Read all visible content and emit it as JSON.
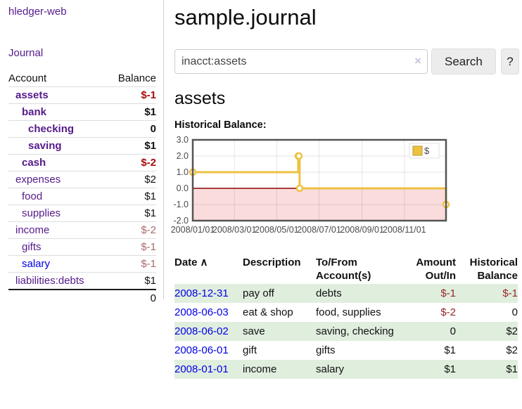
{
  "app": {
    "title": "hledger-web",
    "nav_journal": "Journal"
  },
  "sidebar": {
    "header": {
      "account": "Account",
      "balance": "Balance"
    },
    "accounts": [
      {
        "label": "assets",
        "balance": "$-1",
        "indent": 0,
        "bold": true,
        "negative": true
      },
      {
        "label": "bank",
        "balance": "$1",
        "indent": 1,
        "bold": true,
        "negative": false
      },
      {
        "label": "checking",
        "balance": "0",
        "indent": 2,
        "bold": true,
        "negative": false
      },
      {
        "label": "saving",
        "balance": "$1",
        "indent": 2,
        "bold": true,
        "negative": false
      },
      {
        "label": "cash",
        "balance": "$-2",
        "indent": 1,
        "bold": true,
        "negative": true
      },
      {
        "label": "expenses",
        "balance": "$2",
        "indent": 0,
        "bold": false,
        "negative": false
      },
      {
        "label": "food",
        "balance": "$1",
        "indent": 1,
        "bold": false,
        "negative": false
      },
      {
        "label": "supplies",
        "balance": "$1",
        "indent": 1,
        "bold": false,
        "negative": false
      },
      {
        "label": "income",
        "balance": "$-2",
        "indent": 0,
        "bold": false,
        "negative": true
      },
      {
        "label": "gifts",
        "balance": "$-1",
        "indent": 1,
        "bold": false,
        "negative": true
      },
      {
        "label": "salary",
        "balance": "$-1",
        "indent": 1,
        "bold": false,
        "negative": true,
        "unvisited": true
      },
      {
        "label": "liabilities:debts",
        "balance": "$1",
        "indent": 0,
        "bold": false,
        "negative": false
      }
    ],
    "total": "0"
  },
  "main": {
    "title": "sample.journal",
    "search": {
      "value": "inacct:assets",
      "clear_icon": "×",
      "button_label": "Search",
      "help_label": "?"
    },
    "account_heading": "assets",
    "chart_label": "Historical Balance:"
  },
  "chart_data": {
    "type": "line",
    "step": true,
    "title": "Historical Balance:",
    "legend": [
      {
        "label": "$",
        "color": "#edc240"
      }
    ],
    "series": [
      {
        "name": "$",
        "color": "#edc240",
        "points": [
          [
            "2008-01-01",
            1
          ],
          [
            "2008-06-01",
            2
          ],
          [
            "2008-06-02",
            2
          ],
          [
            "2008-06-03",
            0
          ],
          [
            "2008-12-31",
            -1
          ]
        ]
      }
    ],
    "x_range": [
      "2008-01-01",
      "2008-12-31"
    ],
    "x_tick_labels": [
      "2008/01/01",
      "2008/03/01",
      "2008/05/01",
      "2008/07/01",
      "2008/09/01",
      "2008/11/01"
    ],
    "y_tick_labels": [
      "3.0",
      "2.0",
      "1.0",
      "0.0",
      "-1.0",
      "-2.0"
    ],
    "ylim": [
      -2,
      3
    ],
    "grid": true,
    "legend_position": "top-right",
    "negative_region_color": "#fadcdc",
    "zero_line_color": "#8b0000"
  },
  "register": {
    "columns": [
      {
        "label": "Date",
        "sort_icon": "∧",
        "align": "left"
      },
      {
        "label": "Description",
        "align": "left"
      },
      {
        "label": "To/From\nAccount(s)",
        "align": "left"
      },
      {
        "label": "Amount\nOut/In",
        "align": "right"
      },
      {
        "label": "Historical\nBalance",
        "align": "right"
      }
    ],
    "rows": [
      {
        "date": "2008-12-31",
        "description": "pay off",
        "accounts": "debts",
        "amount": "$-1",
        "balance": "$-1",
        "amount_negative": true,
        "balance_negative": true
      },
      {
        "date": "2008-06-03",
        "description": "eat & shop",
        "accounts": "food, supplies",
        "amount": "$-2",
        "balance": "0",
        "amount_negative": true,
        "balance_negative": false
      },
      {
        "date": "2008-06-02",
        "description": "save",
        "accounts": "saving, checking",
        "amount": "0",
        "balance": "$2",
        "amount_negative": false,
        "balance_negative": false
      },
      {
        "date": "2008-06-01",
        "description": "gift",
        "accounts": "gifts",
        "amount": "$1",
        "balance": "$2",
        "amount_negative": false,
        "balance_negative": false
      },
      {
        "date": "2008-01-01",
        "description": "income",
        "accounts": "salary",
        "amount": "$1",
        "balance": "$1",
        "amount_negative": false,
        "balance_negative": false
      }
    ]
  }
}
